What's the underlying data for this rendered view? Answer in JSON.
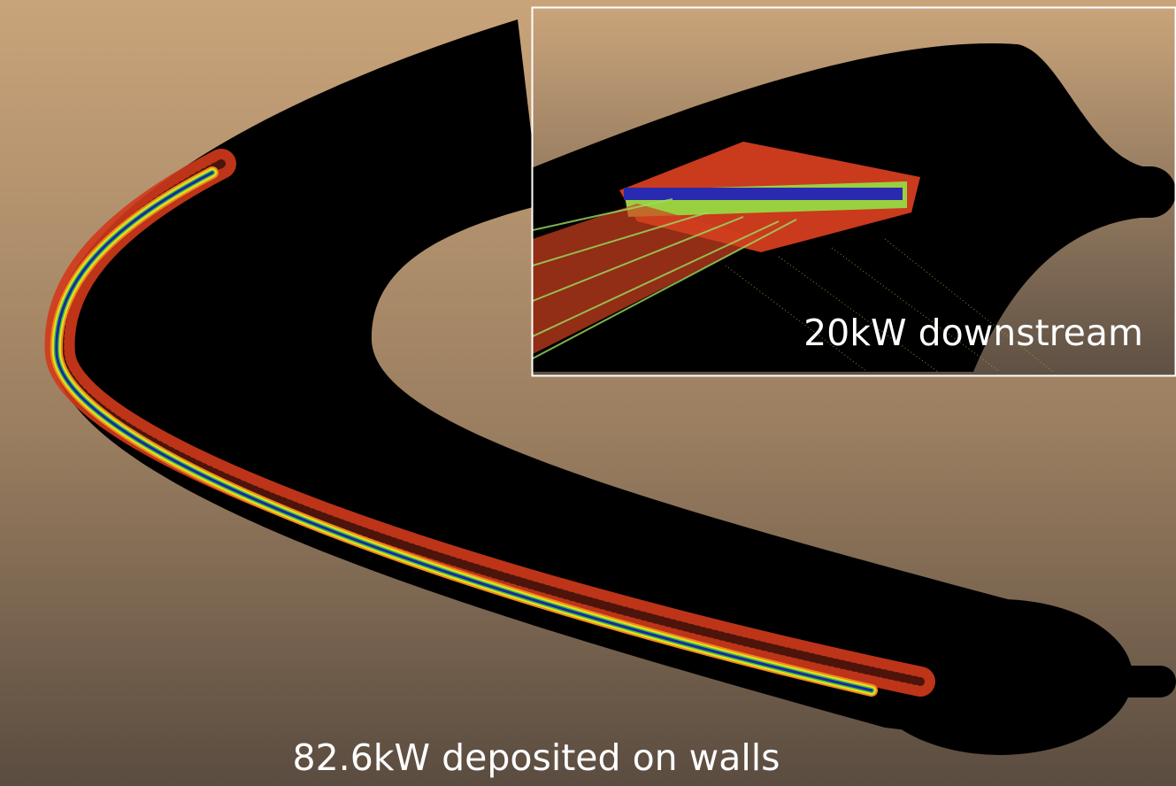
{
  "annotations": {
    "main_label": "82.6kW deposited on walls",
    "inset_label": "20kW downstream"
  }
}
